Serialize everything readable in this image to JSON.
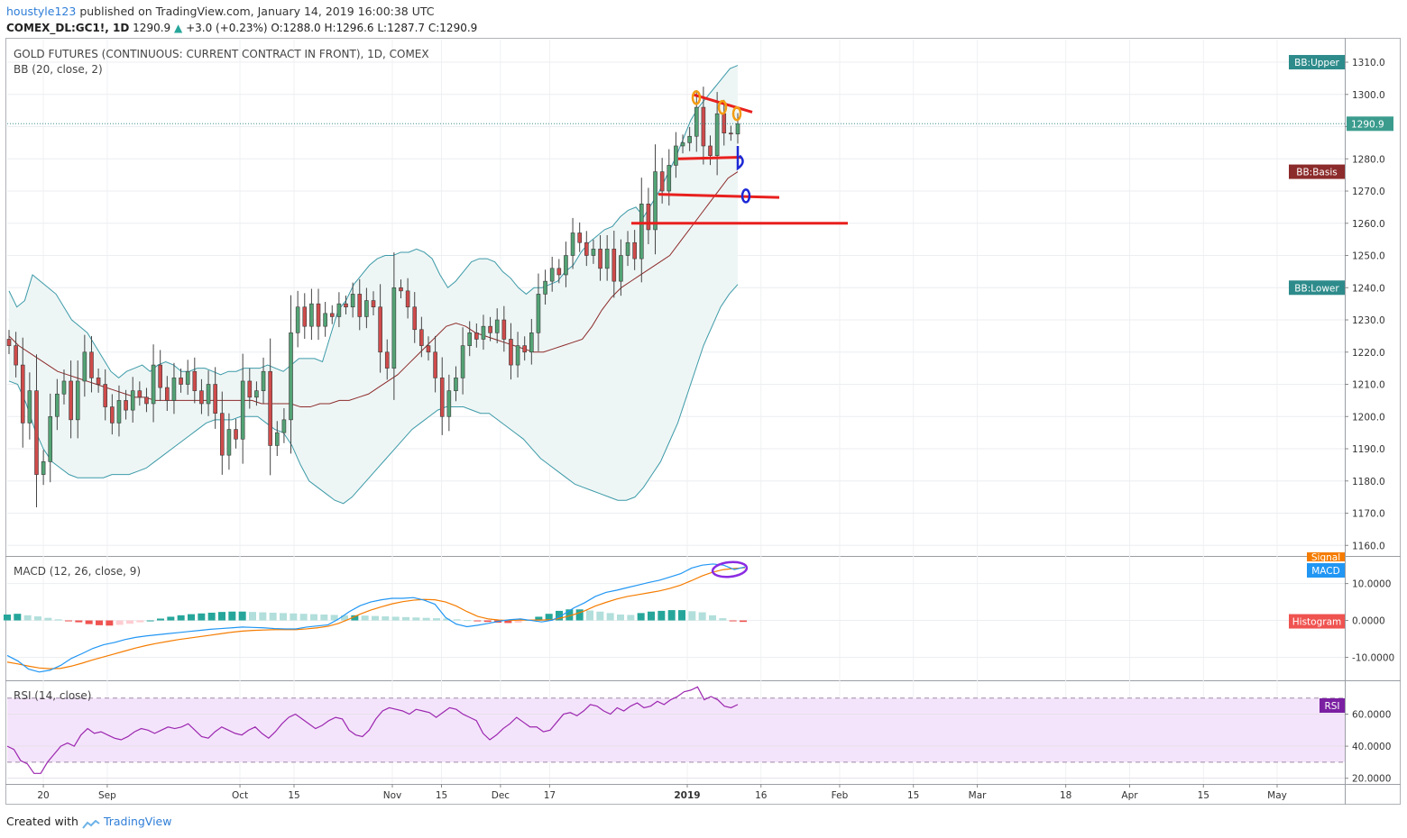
{
  "header": {
    "user": "houstyle123",
    "published": "published on TradingView.com, January 14, 2019 16:00:38 UTC",
    "symbol": "COMEX_DL:GC1!, 1D",
    "last": "1290.9",
    "change_arrow": "▲",
    "change": "+3.0 (+0.23%)",
    "ohlc": "O:1288.0 H:1296.6 L:1287.7 C:1290.9"
  },
  "legends": {
    "title": "GOLD FUTURES (CONTINUOUS: CURRENT CONTRACT IN FRONT), 1D, COMEX",
    "bb": "BB (20, close, 2)",
    "macd": "MACD (12, 26, close, 9)",
    "rsi": "RSI (14, close)"
  },
  "footer": {
    "created": "Created with",
    "brand": "TradingView"
  },
  "colors": {
    "up": "#53a375",
    "down": "#cf4b4b",
    "bb_band": "#3c9aa8",
    "bb_fill": "#eef6f5",
    "bb_basis": "#8c2b2b",
    "macd": "#2196f3",
    "signal": "#f57c00",
    "hist_pos_strong": "#26a69a",
    "hist_pos_weak": "#b2dfdb",
    "hist_neg_strong": "#ef5350",
    "hist_neg_weak": "#ffcdd2",
    "rsi": "#9c27b0",
    "rsi_fill": "#f4e4fb",
    "annotation_red": "#e8201e",
    "annotation_blue": "#1c28d6",
    "annotation_orange": "#f39c12",
    "annotation_purple": "#8a2be2"
  },
  "chart_data": [
    {
      "type": "candlestick",
      "title": "GOLD FUTURES (CONTINUOUS: CURRENT CONTRACT IN FRONT), 1D, COMEX",
      "ylim": [
        1157,
        1317
      ],
      "y_ticks": [
        "1160.0",
        "1170.0",
        "1180.0",
        "1190.0",
        "1200.0",
        "1210.0",
        "1220.0",
        "1230.0",
        "1240.0",
        "1250.0",
        "1260.0",
        "1270.0",
        "1280.0",
        "1290.0",
        "1300.0",
        "1310.0"
      ],
      "x_ticks": [
        "20",
        "Sep",
        "Oct",
        "15",
        "Nov",
        "15",
        "Dec",
        "17",
        "2019",
        "16",
        "Feb",
        "15",
        "Mar",
        "18",
        "Apr",
        "15",
        "May"
      ],
      "x_tick_days": [
        -131,
        -118,
        -91,
        -80,
        -60,
        -50,
        -38,
        -28,
        0,
        15,
        31,
        46,
        59,
        77,
        90,
        105,
        120
      ],
      "x_units": "days relative to 2019-01-01",
      "last_price": "1290.9",
      "series_tags": {
        "upper": "BB:Upper",
        "basis": "BB:Basis",
        "lower": "BB:Lower"
      },
      "closes": [
        1222.0,
        1216.0,
        1198.0,
        1208.0,
        1182.0,
        1186.0,
        1200.0,
        1207.0,
        1211.0,
        1199.0,
        1211.0,
        1220.0,
        1212.0,
        1210.0,
        1203.0,
        1198.0,
        1205.0,
        1202.0,
        1208.0,
        1206.0,
        1204.0,
        1216.0,
        1209.0,
        1205.0,
        1212.0,
        1210.0,
        1214.0,
        1208.0,
        1204.0,
        1210.0,
        1201.0,
        1188.0,
        1196.0,
        1193.0,
        1211.0,
        1206.0,
        1208.0,
        1214.0,
        1191.0,
        1195.0,
        1199.0,
        1226.0,
        1234.0,
        1228.0,
        1235.0,
        1228.0,
        1232.0,
        1231.0,
        1235.0,
        1234.0,
        1238.0,
        1231.0,
        1236.0,
        1234.0,
        1220.0,
        1215.0,
        1240.0,
        1239.0,
        1234.0,
        1227.0,
        1222.0,
        1220.0,
        1212.0,
        1200.0,
        1208.0,
        1212.0,
        1222.0,
        1226.0,
        1224.0,
        1228.0,
        1226.0,
        1230.0,
        1224.0,
        1216.0,
        1222.0,
        1220.0,
        1226.0,
        1238.0,
        1242.0,
        1246.0,
        1244.0,
        1250.0,
        1257.0,
        1254.0,
        1250.0,
        1252.0,
        1246.0,
        1252.0,
        1242.0,
        1250.0,
        1254.0,
        1249.0,
        1266.0,
        1258.0,
        1276.0,
        1270.0,
        1278.0,
        1284.0,
        1285.0,
        1287.0,
        1296.0,
        1284.0,
        1281.0,
        1294.0,
        1288.0,
        1287.7,
        1290.9
      ],
      "bb_upper": [
        1239.0,
        1234.0,
        1236.0,
        1244.0,
        1242.0,
        1240.0,
        1238.0,
        1234.0,
        1230.0,
        1228.0,
        1226.0,
        1222.0,
        1218.0,
        1214.0,
        1212.0,
        1214.0,
        1215.0,
        1216.0,
        1214.0,
        1216.0,
        1217.0,
        1216.0,
        1214.0,
        1214.0,
        1215.0,
        1215.0,
        1214.0,
        1213.0,
        1214.0,
        1214.0,
        1215.0,
        1215.0,
        1215.0,
        1216.0,
        1215.0,
        1214.0,
        1216.0,
        1218.0,
        1218.0,
        1218.0,
        1217.0,
        1225.0,
        1233.0,
        1236.0,
        1241.0,
        1244.0,
        1247.0,
        1249.0,
        1250.0,
        1250.0,
        1251.0,
        1251.0,
        1252.0,
        1251.0,
        1249.0,
        1244.0,
        1240.0,
        1242.0,
        1245.0,
        1248.0,
        1249.0,
        1249.0,
        1248.0,
        1245.0,
        1243.0,
        1240.0,
        1238.0,
        1240.0,
        1240.0,
        1241.0,
        1242.0,
        1245.0,
        1247.0,
        1251.0,
        1254.0,
        1256.0,
        1258.0,
        1259.0,
        1262.0,
        1264.0,
        1265.0,
        1262.0,
        1266.0,
        1270.0,
        1275.0,
        1280.0,
        1286.0,
        1292.0,
        1296.0,
        1299.0,
        1302.0,
        1305.0,
        1308.0,
        1309.0
      ],
      "bb_basis": [
        1225.0,
        1222.0,
        1220.0,
        1218.0,
        1216.0,
        1214.0,
        1213.0,
        1212.0,
        1211.0,
        1210.0,
        1209.0,
        1208.0,
        1207.0,
        1206.0,
        1206.0,
        1205.0,
        1205.0,
        1205.0,
        1205.0,
        1205.0,
        1205.0,
        1205.0,
        1205.0,
        1205.0,
        1205.0,
        1205.0,
        1204.0,
        1204.0,
        1204.0,
        1204.0,
        1203.0,
        1203.0,
        1204.0,
        1204.0,
        1205.0,
        1205.0,
        1206.0,
        1207.0,
        1209.0,
        1211.0,
        1213.0,
        1216.0,
        1219.0,
        1222.0,
        1225.0,
        1228.0,
        1229.0,
        1228.0,
        1226.0,
        1225.0,
        1224.0,
        1223.0,
        1222.0,
        1221.0,
        1220.0,
        1220.0,
        1221.0,
        1222.0,
        1223.0,
        1224.0,
        1228.0,
        1233.0,
        1237.0,
        1240.0,
        1242.0,
        1244.0,
        1246.0,
        1248.0,
        1250.0,
        1254.0,
        1258.0,
        1262.0,
        1266.0,
        1270.0,
        1274.0,
        1276.0
      ],
      "bb_lower": [
        1211.0,
        1210.0,
        1204.0,
        1196.0,
        1190.0,
        1186.0,
        1184.0,
        1182.0,
        1181.0,
        1181.0,
        1181.0,
        1181.0,
        1182.0,
        1182.0,
        1182.0,
        1183.0,
        1184.0,
        1186.0,
        1188.0,
        1190.0,
        1192.0,
        1194.0,
        1196.0,
        1198.0,
        1199.0,
        1199.0,
        1199.0,
        1200.0,
        1200.0,
        1200.0,
        1198.0,
        1196.0,
        1195.0,
        1191.0,
        1185.0,
        1180.0,
        1178.0,
        1176.0,
        1174.0,
        1173.0,
        1175.0,
        1178.0,
        1181.0,
        1184.0,
        1187.0,
        1190.0,
        1193.0,
        1196.0,
        1198.0,
        1200.0,
        1202.0,
        1203.0,
        1203.0,
        1203.0,
        1202.0,
        1201.0,
        1201.0,
        1199.0,
        1197.0,
        1195.0,
        1193.0,
        1190.0,
        1187.0,
        1185.0,
        1183.0,
        1181.0,
        1179.0,
        1178.0,
        1177.0,
        1176.0,
        1175.0,
        1174.0,
        1174.0,
        1175.0,
        1178.0,
        1182.0,
        1186.0,
        1192.0,
        1198.0,
        1206.0,
        1214.0,
        1222.0,
        1228.0,
        1234.0,
        1238.0,
        1241.0
      ]
    },
    {
      "type": "line",
      "title": "MACD (12, 26, close, 9)",
      "ylim": [
        -16,
        17
      ],
      "y_ticks": [
        "10.0000",
        "0.0000",
        "-10.0000"
      ],
      "series_tags": {
        "signal": "Signal",
        "macd": "MACD",
        "histogram": "Histogram"
      },
      "macd": [
        -9.5,
        -11.0,
        -13.2,
        -14.0,
        -13.5,
        -12.2,
        -10.3,
        -9.0,
        -7.6,
        -6.6,
        -6.0,
        -5.2,
        -4.6,
        -4.2,
        -3.9,
        -3.6,
        -3.3,
        -3.0,
        -2.7,
        -2.4,
        -2.2,
        -2.0,
        -1.8,
        -1.9,
        -2.0,
        -2.2,
        -2.3,
        -2.3,
        -1.8,
        -1.5,
        -1.2,
        0.4,
        2.4,
        4.0,
        5.0,
        5.6,
        6.0,
        6.0,
        6.2,
        5.5,
        4.4,
        0.8,
        -1.0,
        -1.7,
        -1.3,
        -0.8,
        -0.2,
        0.2,
        0.4,
        0.0,
        -0.4,
        0.1,
        1.6,
        3.4,
        4.8,
        6.5,
        7.6,
        8.2,
        8.9,
        9.6,
        10.3,
        10.9,
        11.8,
        12.7,
        14.2,
        15.0,
        15.3,
        15.0,
        13.8,
        14.5
      ],
      "signal": [
        -11.3,
        -11.8,
        -12.4,
        -12.9,
        -13.1,
        -13.0,
        -12.4,
        -11.6,
        -10.7,
        -9.9,
        -9.1,
        -8.3,
        -7.5,
        -6.8,
        -6.2,
        -5.7,
        -5.2,
        -4.8,
        -4.4,
        -4.0,
        -3.6,
        -3.2,
        -2.9,
        -2.7,
        -2.6,
        -2.5,
        -2.5,
        -2.5,
        -2.3,
        -2.0,
        -1.6,
        -0.8,
        0.4,
        1.7,
        2.8,
        3.7,
        4.5,
        5.1,
        5.5,
        5.7,
        5.6,
        5.0,
        3.9,
        2.4,
        1.1,
        0.4,
        0.1,
        0.0,
        0.1,
        0.1,
        0.1,
        0.2,
        0.8,
        1.6,
        2.6,
        3.9,
        4.9,
        5.8,
        6.5,
        7.0,
        7.5,
        8.0,
        8.7,
        9.6,
        10.8,
        12.1,
        13.1,
        13.8,
        14.1,
        14.3
      ],
      "histogram": [
        1.6,
        1.8,
        1.4,
        1.1,
        0.7,
        0.3,
        -0.1,
        -0.5,
        -1.0,
        -1.3,
        -1.4,
        -1.2,
        -0.9,
        -0.5,
        0.0,
        0.5,
        1.0,
        1.4,
        1.7,
        1.9,
        2.1,
        2.3,
        2.4,
        2.4,
        2.3,
        2.2,
        2.1,
        2.0,
        1.9,
        1.8,
        1.7,
        1.6,
        1.5,
        1.4,
        1.4,
        1.3,
        1.2,
        1.1,
        1.0,
        0.9,
        0.8,
        0.7,
        0.6,
        0.5,
        0.3,
        0.1,
        -0.1,
        -0.4,
        -0.6,
        -0.7,
        -0.6,
        0.2,
        1.0,
        1.8,
        2.6,
        3.0,
        3.0,
        2.7,
        2.4,
        2.0,
        1.6,
        1.5,
        2.0,
        2.4,
        2.6,
        2.8,
        2.8,
        2.5,
        2.2,
        1.4,
        0.6,
        -0.2,
        -0.4
      ]
    },
    {
      "type": "line",
      "title": "RSI (14, close)",
      "ylim": [
        17,
        80
      ],
      "y_ticks": [
        "60.0000",
        "40.0000",
        "20.0000"
      ],
      "bands": [
        70,
        30
      ],
      "series_tags": {
        "rsi": "RSI"
      },
      "rsi": [
        40.0,
        38.0,
        31.0,
        29.0,
        23.0,
        23.0,
        30.0,
        35.0,
        40.0,
        42.0,
        40.0,
        47.0,
        51.0,
        48.0,
        49.0,
        47.0,
        45.0,
        44.0,
        46.0,
        49.0,
        51.0,
        50.0,
        48.0,
        50.0,
        52.0,
        51.0,
        52.0,
        54.0,
        50.0,
        46.0,
        45.0,
        49.0,
        52.0,
        50.0,
        48.0,
        47.0,
        50.0,
        52.0,
        48.0,
        45.0,
        49.0,
        54.0,
        58.0,
        60.0,
        57.0,
        54.0,
        51.0,
        53.0,
        56.0,
        58.0,
        57.0,
        50.0,
        47.0,
        46.0,
        50.0,
        57.0,
        62.0,
        64.0,
        63.0,
        62.0,
        60.0,
        63.0,
        62.0,
        61.0,
        58.0,
        61.0,
        64.0,
        63.0,
        60.0,
        58.0,
        56.0,
        48.0,
        44.0,
        47.0,
        51.0,
        54.0,
        58.0,
        55.0,
        52.0,
        52.0,
        49.0,
        50.0,
        55.0,
        60.0,
        61.0,
        59.0,
        62.0,
        66.0,
        65.0,
        62.0,
        60.0,
        64.0,
        62.0,
        65.0,
        67.0,
        64.0,
        65.0,
        68.0,
        66.0,
        69.0,
        71.0,
        74.0,
        75.0,
        77.0,
        69.0,
        71.0,
        69.0,
        65.0,
        64.0,
        66.0
      ]
    }
  ]
}
